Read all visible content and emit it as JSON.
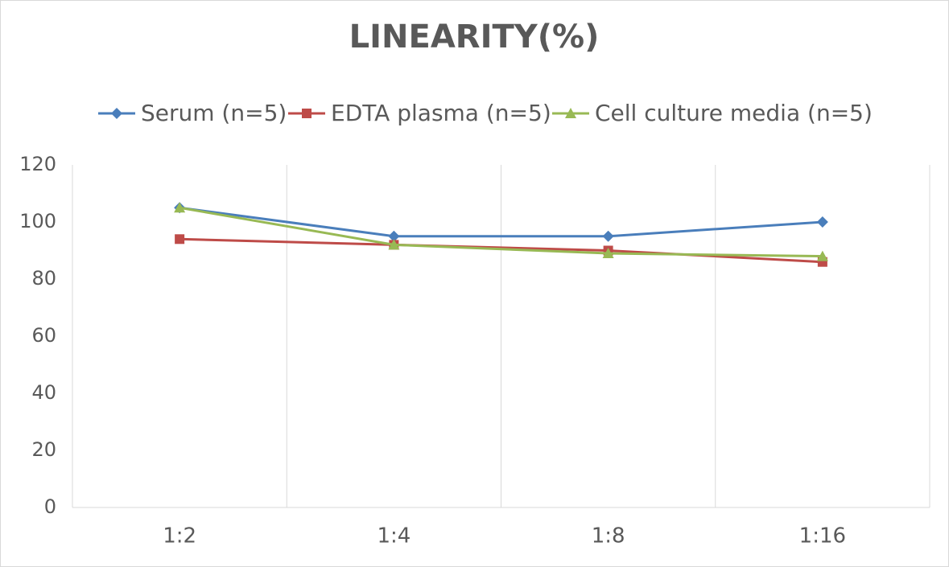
{
  "chart_data": {
    "type": "line",
    "title": "LINEARITY(%)",
    "categories": [
      "1:2",
      "1:4",
      "1:8",
      "1:16"
    ],
    "series": [
      {
        "name": "Serum (n=5)",
        "color": "#4a7ebb",
        "marker": "diamond",
        "values": [
          105,
          95,
          95,
          100
        ]
      },
      {
        "name": "EDTA plasma (n=5)",
        "color": "#be4b48",
        "marker": "square",
        "values": [
          94,
          92,
          90,
          86
        ]
      },
      {
        "name": "Cell culture media (n=5)",
        "color": "#98b954",
        "marker": "triangle",
        "values": [
          105,
          92,
          89,
          88
        ]
      }
    ],
    "ylim": [
      0,
      120
    ],
    "yticks": [
      0,
      20,
      40,
      60,
      80,
      100,
      120
    ],
    "grid": true,
    "legend": "top"
  }
}
